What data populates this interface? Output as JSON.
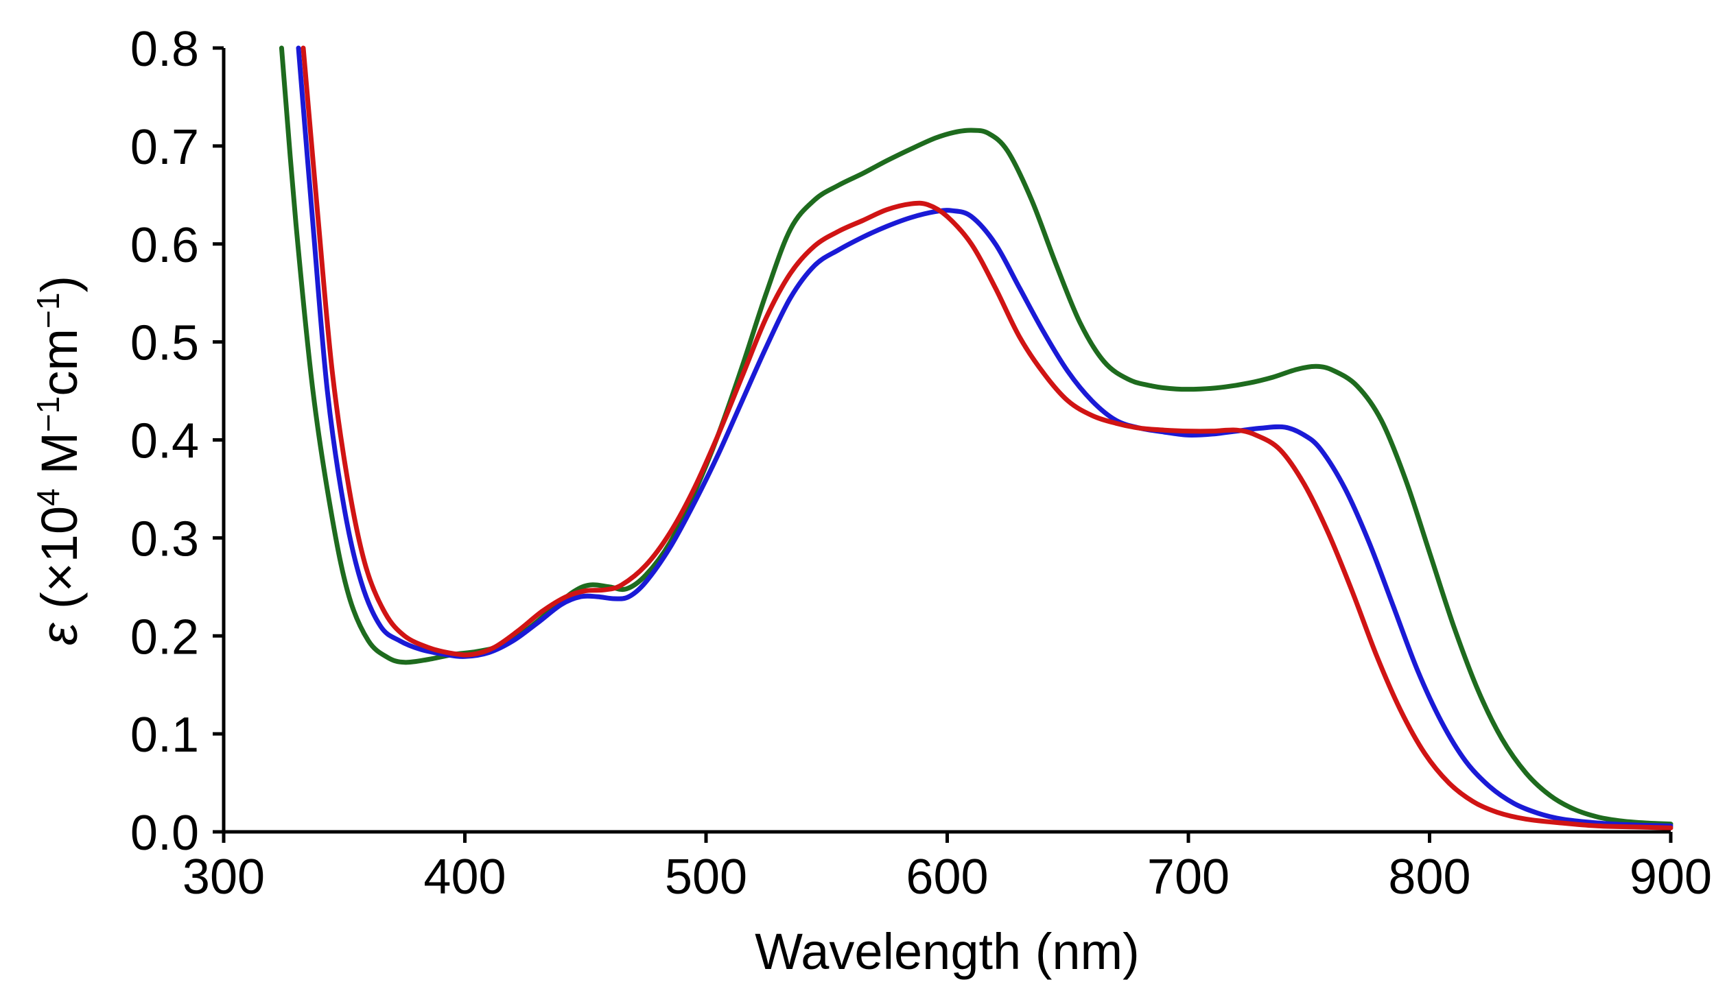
{
  "chart_data": {
    "type": "line",
    "title": "",
    "xlabel": "Wavelength (nm)",
    "ylabel_parts": {
      "symbol": "ε",
      "prefix": " (×10",
      "exp1": "4",
      "unit1": " M",
      "exp2": "−1",
      "unit2": "cm",
      "exp3": "−1",
      "suffix": ")"
    },
    "xlim": [
      300,
      900
    ],
    "ylim": [
      0.0,
      0.8
    ],
    "x_ticks": [
      300,
      400,
      500,
      600,
      700,
      800,
      900
    ],
    "x_tick_labels": [
      "300",
      "400",
      "500",
      "600",
      "700",
      "800",
      "900"
    ],
    "y_ticks": [
      0.0,
      0.1,
      0.2,
      0.3,
      0.4,
      0.5,
      0.6,
      0.7,
      0.8
    ],
    "y_tick_labels": [
      "0.0",
      "0.1",
      "0.2",
      "0.3",
      "0.4",
      "0.5",
      "0.6",
      "0.7",
      "0.8"
    ],
    "grid": false,
    "series": [
      {
        "name": "green",
        "color": "#1e6b1e",
        "points": [
          [
            324,
            0.8
          ],
          [
            330,
            0.62
          ],
          [
            337,
            0.45
          ],
          [
            345,
            0.32
          ],
          [
            352,
            0.24
          ],
          [
            360,
            0.195
          ],
          [
            368,
            0.178
          ],
          [
            375,
            0.173
          ],
          [
            385,
            0.176
          ],
          [
            395,
            0.181
          ],
          [
            405,
            0.184
          ],
          [
            415,
            0.19
          ],
          [
            425,
            0.205
          ],
          [
            435,
            0.225
          ],
          [
            445,
            0.245
          ],
          [
            452,
            0.252
          ],
          [
            460,
            0.25
          ],
          [
            467,
            0.248
          ],
          [
            475,
            0.262
          ],
          [
            485,
            0.295
          ],
          [
            495,
            0.345
          ],
          [
            505,
            0.405
          ],
          [
            515,
            0.475
          ],
          [
            525,
            0.55
          ],
          [
            535,
            0.615
          ],
          [
            545,
            0.645
          ],
          [
            555,
            0.66
          ],
          [
            565,
            0.672
          ],
          [
            575,
            0.685
          ],
          [
            585,
            0.697
          ],
          [
            595,
            0.708
          ],
          [
            603,
            0.714
          ],
          [
            610,
            0.716
          ],
          [
            617,
            0.713
          ],
          [
            625,
            0.695
          ],
          [
            635,
            0.645
          ],
          [
            645,
            0.58
          ],
          [
            655,
            0.52
          ],
          [
            665,
            0.48
          ],
          [
            675,
            0.462
          ],
          [
            685,
            0.455
          ],
          [
            695,
            0.452
          ],
          [
            705,
            0.452
          ],
          [
            715,
            0.454
          ],
          [
            725,
            0.458
          ],
          [
            735,
            0.464
          ],
          [
            745,
            0.472
          ],
          [
            753,
            0.475
          ],
          [
            760,
            0.471
          ],
          [
            770,
            0.455
          ],
          [
            780,
            0.42
          ],
          [
            790,
            0.36
          ],
          [
            800,
            0.285
          ],
          [
            810,
            0.21
          ],
          [
            820,
            0.145
          ],
          [
            830,
            0.095
          ],
          [
            840,
            0.06
          ],
          [
            850,
            0.037
          ],
          [
            860,
            0.023
          ],
          [
            870,
            0.015
          ],
          [
            880,
            0.011
          ],
          [
            890,
            0.009
          ],
          [
            900,
            0.008
          ]
        ]
      },
      {
        "name": "blue",
        "color": "#1a1ad6",
        "points": [
          [
            331,
            0.8
          ],
          [
            337,
            0.62
          ],
          [
            343,
            0.45
          ],
          [
            350,
            0.33
          ],
          [
            357,
            0.255
          ],
          [
            365,
            0.21
          ],
          [
            373,
            0.195
          ],
          [
            382,
            0.186
          ],
          [
            392,
            0.181
          ],
          [
            400,
            0.179
          ],
          [
            410,
            0.183
          ],
          [
            420,
            0.195
          ],
          [
            430,
            0.213
          ],
          [
            440,
            0.232
          ],
          [
            448,
            0.24
          ],
          [
            455,
            0.24
          ],
          [
            462,
            0.238
          ],
          [
            468,
            0.24
          ],
          [
            475,
            0.255
          ],
          [
            485,
            0.29
          ],
          [
            495,
            0.335
          ],
          [
            505,
            0.385
          ],
          [
            515,
            0.44
          ],
          [
            525,
            0.495
          ],
          [
            535,
            0.545
          ],
          [
            545,
            0.578
          ],
          [
            555,
            0.594
          ],
          [
            565,
            0.607
          ],
          [
            575,
            0.618
          ],
          [
            585,
            0.627
          ],
          [
            595,
            0.633
          ],
          [
            602,
            0.634
          ],
          [
            610,
            0.628
          ],
          [
            620,
            0.6
          ],
          [
            630,
            0.555
          ],
          [
            640,
            0.51
          ],
          [
            650,
            0.47
          ],
          [
            660,
            0.44
          ],
          [
            670,
            0.42
          ],
          [
            680,
            0.412
          ],
          [
            690,
            0.408
          ],
          [
            700,
            0.405
          ],
          [
            710,
            0.406
          ],
          [
            720,
            0.409
          ],
          [
            730,
            0.412
          ],
          [
            740,
            0.413
          ],
          [
            748,
            0.405
          ],
          [
            755,
            0.39
          ],
          [
            765,
            0.35
          ],
          [
            775,
            0.295
          ],
          [
            785,
            0.23
          ],
          [
            795,
            0.165
          ],
          [
            805,
            0.112
          ],
          [
            815,
            0.072
          ],
          [
            825,
            0.046
          ],
          [
            835,
            0.029
          ],
          [
            845,
            0.019
          ],
          [
            855,
            0.013
          ],
          [
            870,
            0.009
          ],
          [
            885,
            0.007
          ],
          [
            900,
            0.006
          ]
        ]
      },
      {
        "name": "red",
        "color": "#d01414",
        "points": [
          [
            333,
            0.8
          ],
          [
            339,
            0.63
          ],
          [
            345,
            0.47
          ],
          [
            352,
            0.35
          ],
          [
            359,
            0.27
          ],
          [
            367,
            0.223
          ],
          [
            375,
            0.2
          ],
          [
            385,
            0.188
          ],
          [
            395,
            0.182
          ],
          [
            403,
            0.181
          ],
          [
            412,
            0.188
          ],
          [
            422,
            0.205
          ],
          [
            432,
            0.225
          ],
          [
            442,
            0.24
          ],
          [
            450,
            0.246
          ],
          [
            458,
            0.247
          ],
          [
            465,
            0.252
          ],
          [
            475,
            0.272
          ],
          [
            485,
            0.305
          ],
          [
            495,
            0.35
          ],
          [
            505,
            0.405
          ],
          [
            515,
            0.465
          ],
          [
            525,
            0.525
          ],
          [
            535,
            0.57
          ],
          [
            545,
            0.598
          ],
          [
            555,
            0.613
          ],
          [
            565,
            0.624
          ],
          [
            575,
            0.635
          ],
          [
            585,
            0.641
          ],
          [
            592,
            0.64
          ],
          [
            600,
            0.628
          ],
          [
            610,
            0.6
          ],
          [
            620,
            0.555
          ],
          [
            630,
            0.505
          ],
          [
            640,
            0.468
          ],
          [
            650,
            0.44
          ],
          [
            660,
            0.425
          ],
          [
            670,
            0.417
          ],
          [
            680,
            0.412
          ],
          [
            690,
            0.41
          ],
          [
            700,
            0.409
          ],
          [
            710,
            0.409
          ],
          [
            720,
            0.41
          ],
          [
            728,
            0.405
          ],
          [
            738,
            0.39
          ],
          [
            748,
            0.355
          ],
          [
            758,
            0.305
          ],
          [
            768,
            0.245
          ],
          [
            778,
            0.18
          ],
          [
            788,
            0.124
          ],
          [
            798,
            0.08
          ],
          [
            808,
            0.05
          ],
          [
            818,
            0.031
          ],
          [
            828,
            0.02
          ],
          [
            840,
            0.013
          ],
          [
            855,
            0.009
          ],
          [
            870,
            0.006
          ],
          [
            885,
            0.005
          ],
          [
            900,
            0.004
          ]
        ]
      }
    ]
  }
}
